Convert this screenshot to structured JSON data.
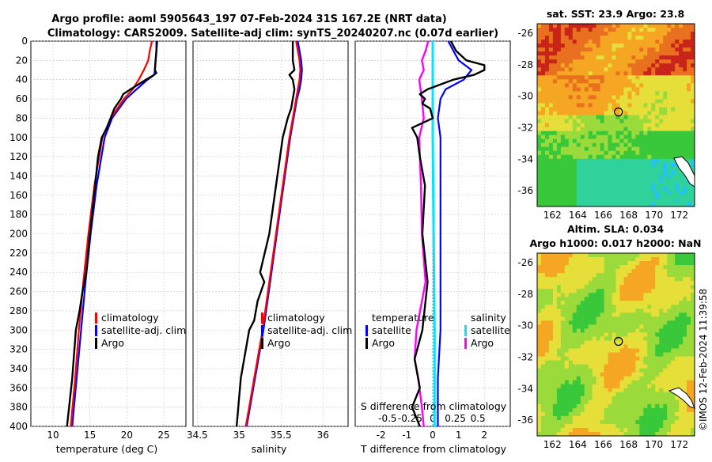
{
  "title": {
    "line1": "Argo profile: aoml 5905643_197 07-Feb-2024 31S 167.2E (NRT data)",
    "line2": "Climatology: CARS2009. Satellite-adj clim: synTS_20240207.nc (0.07d earlier)"
  },
  "watermark": "©IMOS 12-Feb-2024 11:39:58",
  "colors": {
    "climatology": "#ff0000",
    "satellite": "#0000ff",
    "argo": "#000000",
    "sal_satellite": "#00e5ff",
    "sal_argo": "#ff00ff"
  },
  "chart_data": [
    {
      "id": "temperature",
      "type": "line",
      "xlabel": "temperature (deg C)",
      "xlim": [
        7,
        28
      ],
      "xticks": [
        "10",
        "15",
        "20",
        "25"
      ],
      "xtick_values": [
        10,
        15,
        20,
        25
      ],
      "ylim": [
        0,
        400
      ],
      "yticks": [
        "0",
        "20",
        "40",
        "60",
        "80",
        "100",
        "120",
        "140",
        "160",
        "180",
        "200",
        "220",
        "240",
        "260",
        "280",
        "300",
        "320",
        "340",
        "360",
        "380",
        "400"
      ],
      "legend": [
        "climatology",
        "satellite-adj. clim",
        "Argo"
      ],
      "series": [
        {
          "name": "climatology",
          "depth": [
            0,
            10,
            20,
            30,
            40,
            50,
            60,
            80,
            100,
            150,
            200,
            250,
            300,
            350,
            400
          ],
          "values": [
            23.4,
            23.1,
            22.9,
            22.3,
            21.6,
            20.8,
            19.6,
            17.8,
            16.7,
            15.6,
            14.8,
            14.1,
            13.5,
            13.0,
            12.4
          ]
        },
        {
          "name": "satellite-adj. clim",
          "depth": [
            0,
            10,
            20,
            30,
            35,
            40,
            50,
            60,
            80,
            100,
            150,
            200,
            250,
            300,
            350,
            400
          ],
          "values": [
            24.0,
            24.0,
            23.9,
            23.8,
            23.7,
            22.8,
            21.3,
            19.9,
            18.0,
            17.0,
            15.9,
            15.1,
            14.4,
            13.8,
            13.2,
            12.6
          ]
        },
        {
          "name": "Argo",
          "depth": [
            0,
            10,
            20,
            30,
            33,
            36,
            40,
            50,
            55,
            60,
            70,
            80,
            90,
            100,
            120,
            150,
            200,
            240,
            260,
            280,
            300,
            350,
            400
          ],
          "values": [
            24.1,
            24.0,
            23.9,
            23.8,
            24.0,
            23.5,
            22.6,
            20.5,
            19.5,
            19.2,
            18.3,
            17.8,
            17.3,
            16.6,
            16.1,
            15.7,
            15.0,
            14.5,
            14.0,
            13.6,
            13.1,
            12.6,
            11.9
          ]
        }
      ]
    },
    {
      "id": "salinity",
      "type": "line",
      "xlabel": "salinity",
      "xlim": [
        34.45,
        36.3
      ],
      "xticks": [
        "34.5",
        "35",
        "35.5",
        "36"
      ],
      "xtick_values": [
        34.5,
        35.0,
        35.5,
        36.0
      ],
      "ylim": [
        0,
        400
      ],
      "legend": [
        "climatology",
        "satellite-adj. clim",
        "Argo"
      ],
      "series": [
        {
          "name": "climatology",
          "depth": [
            0,
            10,
            20,
            30,
            40,
            50,
            60,
            80,
            100,
            150,
            200,
            250,
            300,
            350,
            400
          ],
          "values": [
            35.68,
            35.7,
            35.72,
            35.73,
            35.72,
            35.7,
            35.68,
            35.64,
            35.6,
            35.52,
            35.44,
            35.36,
            35.28,
            35.18,
            35.08
          ]
        },
        {
          "name": "satellite-adj. clim",
          "depth": [
            0,
            10,
            20,
            30,
            40,
            50,
            60,
            80,
            100,
            150,
            200,
            250,
            300,
            350,
            400
          ],
          "values": [
            35.7,
            35.72,
            35.74,
            35.75,
            35.74,
            35.72,
            35.69,
            35.65,
            35.61,
            35.53,
            35.45,
            35.37,
            35.29,
            35.19,
            35.09
          ]
        },
        {
          "name": "Argo",
          "depth": [
            0,
            10,
            20,
            30,
            35,
            40,
            50,
            60,
            70,
            80,
            100,
            150,
            200,
            240,
            250,
            270,
            290,
            300,
            350,
            400
          ],
          "values": [
            35.64,
            35.64,
            35.64,
            35.66,
            35.6,
            35.64,
            35.66,
            35.64,
            35.62,
            35.58,
            35.52,
            35.44,
            35.36,
            35.25,
            35.3,
            35.22,
            35.18,
            35.12,
            35.02,
            34.97
          ]
        }
      ]
    },
    {
      "id": "difference",
      "type": "line",
      "xlabel": "T difference from climatology",
      "xlabel_top": "S difference from climatology",
      "xlim": [
        -3,
        3
      ],
      "xticks": [
        "-2",
        "-1",
        "0",
        "1",
        "2"
      ],
      "xtick_values": [
        -2,
        -1,
        0,
        1,
        2
      ],
      "s_ticks": [
        "-0.5",
        "-0.25",
        "0",
        "0.25",
        "0.5"
      ],
      "s_tick_values": [
        -0.5,
        -0.25,
        0,
        0.25,
        0.5
      ],
      "ylim": [
        0,
        400
      ],
      "legend_temperature": {
        "heading": "temperature",
        "items": [
          "satellite",
          "Argo"
        ]
      },
      "legend_salinity": {
        "heading": "salinity",
        "items": [
          "satellite",
          "Argo"
        ]
      },
      "series": [
        {
          "name": "temperature satellite",
          "depth": [
            0,
            10,
            20,
            30,
            40,
            50,
            60,
            80,
            100,
            150,
            200,
            250,
            300,
            350,
            400
          ],
          "values": [
            0.6,
            0.8,
            1.0,
            1.5,
            1.2,
            0.5,
            0.3,
            0.2,
            0.3,
            0.3,
            0.3,
            0.3,
            0.3,
            0.2,
            0.2
          ]
        },
        {
          "name": "temperature Argo",
          "depth": [
            0,
            10,
            20,
            25,
            30,
            35,
            40,
            45,
            50,
            55,
            60,
            65,
            70,
            80,
            90,
            100,
            120,
            150,
            200,
            250,
            300,
            330,
            360,
            380,
            400
          ],
          "values": [
            0.7,
            0.9,
            1.3,
            2.0,
            2.0,
            1.6,
            0.8,
            0.3,
            -0.2,
            -0.5,
            -0.3,
            -0.4,
            -0.1,
            0.0,
            -0.8,
            -0.6,
            -0.5,
            -0.3,
            -0.4,
            -0.2,
            -0.4,
            -0.7,
            -0.5,
            -0.8,
            -0.5
          ]
        },
        {
          "name": "salinity satellite",
          "depth": [
            0,
            50,
            100,
            200,
            300,
            400
          ],
          "values": [
            0.0,
            0.0,
            0.0,
            0.01,
            0.02,
            0.02
          ]
        },
        {
          "name": "salinity Argo",
          "depth": [
            0,
            10,
            20,
            30,
            40,
            60,
            80,
            100,
            150,
            200,
            250,
            280,
            300,
            330,
            350,
            380,
            400
          ],
          "values": [
            -0.05,
            -0.08,
            -0.12,
            -0.1,
            -0.15,
            -0.12,
            -0.1,
            -0.15,
            -0.13,
            -0.12,
            -0.08,
            -0.14,
            -0.18,
            -0.2,
            -0.16,
            -0.12,
            -0.1
          ]
        }
      ]
    },
    {
      "id": "sst_map",
      "type": "heatmap",
      "title": "sat. SST: 23.9 Argo: 23.8",
      "xticks": [
        "162",
        "164",
        "166",
        "168",
        "170",
        "172"
      ],
      "yticks": [
        "-26",
        "-28",
        "-30",
        "-32",
        "-34",
        "-36"
      ],
      "xlim": [
        160.8,
        173.2
      ],
      "ylim": [
        -37,
        -25.4
      ],
      "marker": {
        "lon": 167.2,
        "lat": -31.0
      }
    },
    {
      "id": "sla_map",
      "type": "heatmap",
      "title": "Altim. SLA: 0.034",
      "subtitle": "Argo h1000: 0.017 h2000: NaN",
      "xticks": [
        "162",
        "164",
        "166",
        "168",
        "170",
        "172"
      ],
      "yticks": [
        "-26",
        "-28",
        "-30",
        "-32",
        "-34",
        "-36"
      ],
      "xlim": [
        160.8,
        173.2
      ],
      "ylim": [
        -37,
        -25.4
      ],
      "marker": {
        "lon": 167.2,
        "lat": -31.0
      }
    }
  ]
}
